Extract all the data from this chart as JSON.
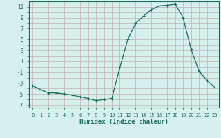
{
  "x": [
    0,
    1,
    2,
    3,
    4,
    5,
    6,
    7,
    8,
    9,
    10,
    11,
    12,
    13,
    14,
    15,
    16,
    17,
    18,
    19,
    20,
    21,
    22,
    23
  ],
  "y": [
    -3.5,
    -4.2,
    -4.8,
    -4.8,
    -5.0,
    -5.2,
    -5.5,
    -5.8,
    -6.2,
    -6.0,
    -5.8,
    -0.2,
    5.0,
    8.0,
    9.3,
    10.5,
    11.2,
    11.3,
    11.5,
    9.0,
    3.2,
    -0.8,
    -2.5,
    -3.8
  ],
  "line_color": "#1a6b5a",
  "marker": "+",
  "marker_size": 3,
  "bg_color": "#d6f0ee",
  "grid_color": "#b8c8c0",
  "xlabel": "Humidex (Indice chaleur)",
  "ytick_labels": [
    "",
    "-7",
    "",
    "-5",
    "",
    "-3",
    "",
    "-1",
    "",
    "1",
    "",
    "3",
    "",
    "5",
    "",
    "7",
    "",
    "9",
    "",
    "11"
  ],
  "yticks_major": [
    -7,
    -5,
    -3,
    -1,
    1,
    3,
    5,
    7,
    9,
    11
  ],
  "xticks": [
    0,
    1,
    2,
    3,
    4,
    5,
    6,
    7,
    8,
    9,
    10,
    11,
    12,
    13,
    14,
    15,
    16,
    17,
    18,
    19,
    20,
    21,
    22,
    23
  ],
  "ylim": [
    -7.5,
    12.0
  ],
  "xlim": [
    -0.5,
    23.5
  ]
}
